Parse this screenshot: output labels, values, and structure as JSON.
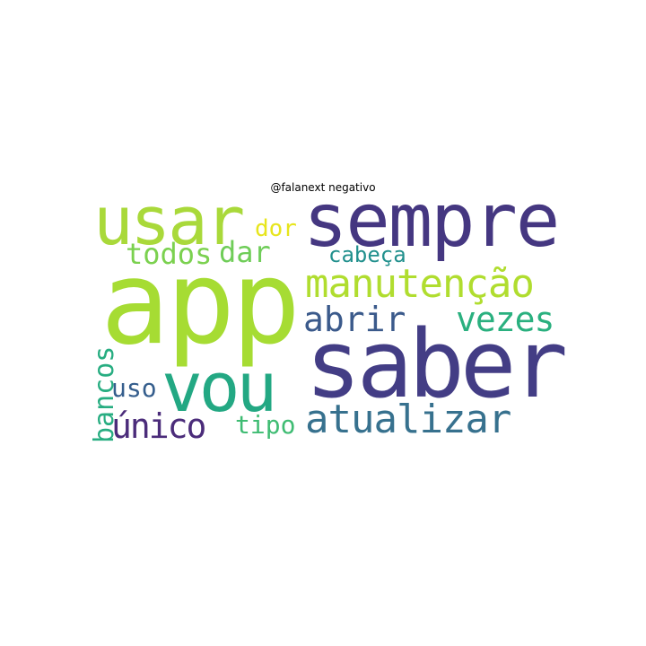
{
  "title": "@falanext negativo",
  "words": [
    {
      "text": "app",
      "color": "#a6dc33"
    },
    {
      "text": "sempre",
      "color": "#453781"
    },
    {
      "text": "saber",
      "color": "#433d85"
    },
    {
      "text": "usar",
      "color": "#a9d93a"
    },
    {
      "text": "vou",
      "color": "#23a883"
    },
    {
      "text": "manutenção",
      "color": "#b0dd2f"
    },
    {
      "text": "atualizar",
      "color": "#37718e"
    },
    {
      "text": "abrir",
      "color": "#3b5a8b"
    },
    {
      "text": "vezes",
      "color": "#2ab07f"
    },
    {
      "text": "único",
      "color": "#4b2c7a"
    },
    {
      "text": "todos",
      "color": "#7bd14f"
    },
    {
      "text": "dar",
      "color": "#6fcd58"
    },
    {
      "text": "bancos",
      "color": "#27ad81"
    },
    {
      "text": "uso",
      "color": "#355e8d"
    },
    {
      "text": "tipo",
      "color": "#3fbc73"
    },
    {
      "text": "cabeça",
      "color": "#21908d"
    },
    {
      "text": "dor",
      "color": "#e7e51d"
    }
  ]
}
